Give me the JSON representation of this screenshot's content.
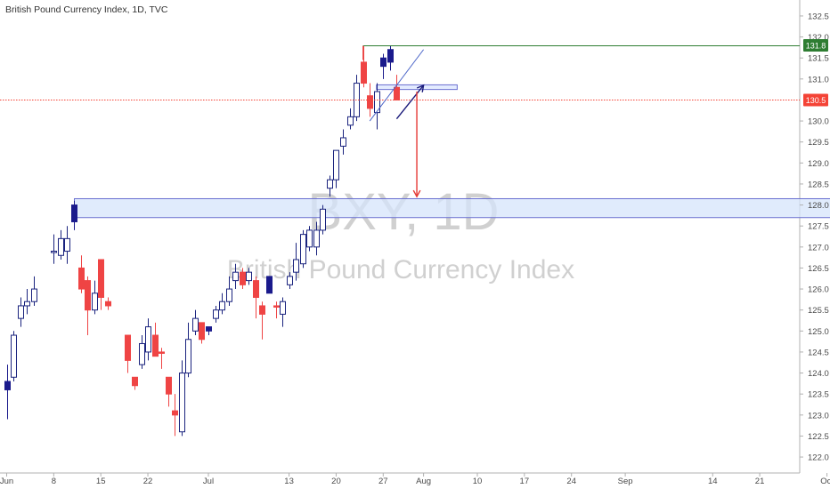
{
  "chart_data": {
    "type": "candlestick",
    "title": "British Pound Currency Index, 1D, TVC",
    "watermark": {
      "symbol": "BXY, 1D",
      "name": "British Pound Currency Index"
    },
    "ylim": [
      121.8,
      132.7
    ],
    "y_ticks": [
      132.5,
      132.0,
      131.5,
      131.0,
      130.5,
      130.0,
      129.5,
      129.0,
      128.5,
      128.0,
      127.5,
      127.0,
      126.5,
      126.0,
      125.5,
      125.0,
      124.5,
      124.0,
      123.5,
      123.0,
      122.5,
      122.0
    ],
    "x_tick_labels": [
      {
        "day": 0,
        "label": "Jun"
      },
      {
        "day": 7,
        "label": "8"
      },
      {
        "day": 14,
        "label": "15"
      },
      {
        "day": 21,
        "label": "22"
      },
      {
        "day": 30,
        "label": "Jul"
      },
      {
        "day": 42,
        "label": "13"
      },
      {
        "day": 49,
        "label": "20"
      },
      {
        "day": 56,
        "label": "27"
      },
      {
        "day": 62,
        "label": "Aug"
      },
      {
        "day": 70,
        "label": "10"
      },
      {
        "day": 77,
        "label": "17"
      },
      {
        "day": 84,
        "label": "24"
      },
      {
        "day": 92,
        "label": "Sep"
      },
      {
        "day": 105,
        "label": "14"
      },
      {
        "day": 112,
        "label": "21"
      },
      {
        "day": 122,
        "label": "Oct"
      }
    ],
    "candles": [
      {
        "day": 0,
        "o": 123.6,
        "h": 124.2,
        "l": 122.9,
        "c": 123.8,
        "style": "solid"
      },
      {
        "day": 1,
        "o": 123.9,
        "h": 125.0,
        "l": 123.8,
        "c": 124.9,
        "style": "up"
      },
      {
        "day": 2,
        "o": 125.3,
        "h": 125.8,
        "l": 125.1,
        "c": 125.6,
        "style": "up"
      },
      {
        "day": 3,
        "o": 125.6,
        "h": 126.0,
        "l": 125.4,
        "c": 125.7,
        "style": "up"
      },
      {
        "day": 4,
        "o": 125.7,
        "h": 126.3,
        "l": 125.6,
        "c": 126.0,
        "style": "up"
      },
      {
        "day": 7,
        "o": 126.9,
        "h": 127.3,
        "l": 126.6,
        "c": 126.9,
        "style": "up"
      },
      {
        "day": 8,
        "o": 126.8,
        "h": 127.4,
        "l": 126.7,
        "c": 127.2,
        "style": "up"
      },
      {
        "day": 9,
        "o": 126.9,
        "h": 127.5,
        "l": 126.6,
        "c": 127.2,
        "style": "up"
      },
      {
        "day": 10,
        "o": 127.6,
        "h": 128.1,
        "l": 127.4,
        "c": 128.0,
        "style": "solid"
      },
      {
        "day": 11,
        "o": 126.5,
        "h": 126.8,
        "l": 125.9,
        "c": 126.0,
        "style": "down"
      },
      {
        "day": 12,
        "o": 126.2,
        "h": 126.3,
        "l": 124.9,
        "c": 125.5,
        "style": "down"
      },
      {
        "day": 13,
        "o": 125.5,
        "h": 126.2,
        "l": 125.4,
        "c": 125.9,
        "style": "up"
      },
      {
        "day": 14,
        "o": 126.7,
        "h": 126.7,
        "l": 125.5,
        "c": 125.8,
        "style": "down"
      },
      {
        "day": 15,
        "o": 125.7,
        "h": 125.8,
        "l": 125.5,
        "c": 125.6,
        "style": "down"
      },
      {
        "day": 18,
        "o": 124.9,
        "h": 124.9,
        "l": 124.0,
        "c": 124.3,
        "style": "down"
      },
      {
        "day": 19,
        "o": 123.9,
        "h": 123.9,
        "l": 123.6,
        "c": 123.7,
        "style": "down"
      },
      {
        "day": 20,
        "o": 124.2,
        "h": 124.9,
        "l": 124.1,
        "c": 124.7,
        "style": "up"
      },
      {
        "day": 21,
        "o": 124.5,
        "h": 125.3,
        "l": 124.3,
        "c": 125.1,
        "style": "up"
      },
      {
        "day": 22,
        "o": 124.9,
        "h": 125.2,
        "l": 124.4,
        "c": 124.4,
        "style": "down"
      },
      {
        "day": 23,
        "o": 124.5,
        "h": 124.6,
        "l": 124.1,
        "c": 124.5,
        "style": "down"
      },
      {
        "day": 24,
        "o": 123.9,
        "h": 123.9,
        "l": 123.2,
        "c": 123.5,
        "style": "down"
      },
      {
        "day": 25,
        "o": 123.1,
        "h": 123.5,
        "l": 122.5,
        "c": 123.0,
        "style": "down"
      },
      {
        "day": 26,
        "o": 122.6,
        "h": 124.3,
        "l": 122.5,
        "c": 124.0,
        "style": "up"
      },
      {
        "day": 27,
        "o": 124.0,
        "h": 125.2,
        "l": 123.9,
        "c": 124.8,
        "style": "up"
      },
      {
        "day": 28,
        "o": 125.0,
        "h": 125.5,
        "l": 124.9,
        "c": 125.3,
        "style": "up"
      },
      {
        "day": 29,
        "o": 125.2,
        "h": 125.2,
        "l": 124.7,
        "c": 124.8,
        "style": "down"
      },
      {
        "day": 30,
        "o": 125.0,
        "h": 125.1,
        "l": 124.9,
        "c": 125.1,
        "style": "solid"
      },
      {
        "day": 31,
        "o": 125.3,
        "h": 125.6,
        "l": 125.2,
        "c": 125.5,
        "style": "up"
      },
      {
        "day": 32,
        "o": 125.5,
        "h": 125.9,
        "l": 125.4,
        "c": 125.7,
        "style": "up"
      },
      {
        "day": 33,
        "o": 125.7,
        "h": 126.3,
        "l": 125.6,
        "c": 126.0,
        "style": "up"
      },
      {
        "day": 34,
        "o": 126.2,
        "h": 126.6,
        "l": 126.0,
        "c": 126.4,
        "style": "up"
      },
      {
        "day": 35,
        "o": 126.4,
        "h": 126.5,
        "l": 126.0,
        "c": 126.1,
        "style": "down"
      },
      {
        "day": 36,
        "o": 126.4,
        "h": 126.5,
        "l": 126.1,
        "c": 126.2,
        "style": "up"
      },
      {
        "day": 37,
        "o": 126.2,
        "h": 126.3,
        "l": 125.3,
        "c": 125.8,
        "style": "down"
      },
      {
        "day": 38,
        "o": 125.6,
        "h": 125.7,
        "l": 124.8,
        "c": 125.4,
        "style": "down"
      },
      {
        "day": 39,
        "o": 126.3,
        "h": 126.3,
        "l": 125.9,
        "c": 125.9,
        "style": "solid"
      },
      {
        "day": 40,
        "o": 125.6,
        "h": 125.7,
        "l": 125.3,
        "c": 125.6,
        "style": "down"
      },
      {
        "day": 41,
        "o": 125.4,
        "h": 125.8,
        "l": 125.1,
        "c": 125.7,
        "style": "up"
      },
      {
        "day": 42,
        "o": 126.1,
        "h": 126.4,
        "l": 126.0,
        "c": 126.3,
        "style": "up"
      },
      {
        "day": 43,
        "o": 126.4,
        "h": 127.1,
        "l": 126.2,
        "c": 126.7,
        "style": "up"
      },
      {
        "day": 44,
        "o": 126.6,
        "h": 127.4,
        "l": 126.5,
        "c": 127.3,
        "style": "up"
      },
      {
        "day": 45,
        "o": 127.0,
        "h": 127.5,
        "l": 126.9,
        "c": 127.4,
        "style": "up"
      },
      {
        "day": 46,
        "o": 127.0,
        "h": 127.6,
        "l": 126.8,
        "c": 127.4,
        "style": "up"
      },
      {
        "day": 47,
        "o": 127.4,
        "h": 128.0,
        "l": 127.3,
        "c": 127.9,
        "style": "up"
      },
      {
        "day": 48,
        "o": 128.4,
        "h": 128.7,
        "l": 128.2,
        "c": 128.6,
        "style": "up"
      },
      {
        "day": 49,
        "o": 128.6,
        "h": 129.3,
        "l": 128.4,
        "c": 129.3,
        "style": "up"
      },
      {
        "day": 50,
        "o": 129.4,
        "h": 129.8,
        "l": 129.2,
        "c": 129.6,
        "style": "up"
      },
      {
        "day": 51,
        "o": 129.9,
        "h": 130.3,
        "l": 129.8,
        "c": 130.1,
        "style": "up"
      },
      {
        "day": 52,
        "o": 130.1,
        "h": 131.1,
        "l": 130.0,
        "c": 130.9,
        "style": "up"
      },
      {
        "day": 53,
        "o": 131.4,
        "h": 131.8,
        "l": 130.8,
        "c": 130.9,
        "style": "down"
      },
      {
        "day": 54,
        "o": 130.6,
        "h": 130.9,
        "l": 130.1,
        "c": 130.3,
        "style": "down"
      },
      {
        "day": 55,
        "o": 130.2,
        "h": 130.9,
        "l": 129.8,
        "c": 130.7,
        "style": "up"
      },
      {
        "day": 56,
        "o": 131.3,
        "h": 131.6,
        "l": 131.0,
        "c": 131.5,
        "style": "solid"
      },
      {
        "day": 57,
        "o": 131.4,
        "h": 131.8,
        "l": 131.2,
        "c": 131.7,
        "style": "solid"
      },
      {
        "day": 58,
        "o": 130.8,
        "h": 131.1,
        "l": 130.5,
        "c": 130.5,
        "style": "down"
      }
    ],
    "levels": [
      {
        "type": "hline",
        "price": 131.8,
        "from_day": 53,
        "to_day": 130,
        "color": "#2e7d32",
        "label": "131.8"
      },
      {
        "type": "hline",
        "price": 130.5,
        "from_day": -6,
        "to_day": 130,
        "color": "#f44336",
        "dashed": true,
        "label": "130.5"
      }
    ],
    "zone": {
      "from_day": 10,
      "to_day": 124,
      "top": 128.15,
      "bottom": 127.7,
      "color": "#d6e4fb",
      "border": "#6a6fd0"
    },
    "small_zone": {
      "from_day": 55,
      "to_day": 67,
      "top": 130.86,
      "bottom": 130.75
    },
    "trendline": {
      "from": {
        "day": 54,
        "price": 130.0
      },
      "to": {
        "day": 62,
        "price": 131.7
      }
    },
    "arrows": [
      {
        "type": "up",
        "from": {
          "day": 58,
          "price": 130.05
        },
        "to": {
          "day": 62,
          "price": 130.85
        },
        "color": "#1a1a7a"
      },
      {
        "type": "down",
        "from": {
          "day": 61,
          "price": 130.7
        },
        "to": {
          "day": 61,
          "price": 128.2
        },
        "color": "#e53935"
      }
    ],
    "colors": {
      "up_border": "#1a237e",
      "solid": "#1a1a8c",
      "down": "#ef4444",
      "axis_text": "#4a4a4a"
    }
  }
}
